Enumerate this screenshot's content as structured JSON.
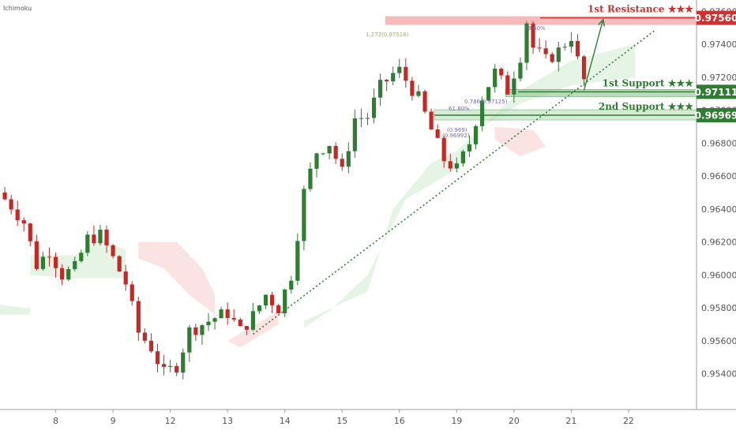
{
  "indicator": "Ichimoku",
  "colors": {
    "up": "#2e7d32",
    "down": "#c62828",
    "resistance": "#d32f2f",
    "support": "#2e7d32",
    "cloud_green": "#e6f4e6",
    "cloud_red": "#fbe3e3",
    "trendline": "#2e7d32",
    "fib_label": "#7b6aa8",
    "fib_ext_label": "#8bc34a"
  },
  "chart_data": {
    "type": "candlestick",
    "symbol_label": "Ichimoku",
    "y_ticks": [
      "0.97600",
      "0.97400",
      "0.97200",
      "0.97000",
      "0.96800",
      "0.96600",
      "0.96400",
      "0.96200",
      "0.96000",
      "0.95800",
      "0.95600",
      "0.95400"
    ],
    "y_tick_values": [
      0.976,
      0.974,
      0.972,
      0.97,
      0.968,
      0.966,
      0.964,
      0.962,
      0.96,
      0.958,
      0.956,
      0.954
    ],
    "ylim": [
      0.9525,
      0.9763
    ],
    "x_ticks": [
      "8",
      "9",
      "12",
      "13",
      "14",
      "15",
      "16",
      "19",
      "20",
      "21",
      "22"
    ],
    "x_tick_index": [
      9,
      18,
      27,
      36,
      45,
      54,
      63,
      72,
      81,
      90,
      99
    ],
    "bar_count": 110,
    "close_path": [
      [
        0,
        0.965
      ],
      [
        2,
        0.9642
      ],
      [
        4,
        0.9632
      ],
      [
        6,
        0.9606
      ],
      [
        8,
        0.9615
      ],
      [
        10,
        0.96
      ],
      [
        12,
        0.9604
      ],
      [
        14,
        0.9622
      ],
      [
        16,
        0.9624
      ],
      [
        18,
        0.961
      ],
      [
        20,
        0.9595
      ],
      [
        22,
        0.9565
      ],
      [
        24,
        0.9556
      ],
      [
        26,
        0.954
      ],
      [
        28,
        0.9545
      ],
      [
        30,
        0.9566
      ],
      [
        32,
        0.957
      ],
      [
        34,
        0.9574
      ],
      [
        36,
        0.9577
      ],
      [
        38,
        0.9566
      ],
      [
        40,
        0.9575
      ],
      [
        42,
        0.9588
      ],
      [
        44,
        0.958
      ],
      [
        46,
        0.96
      ],
      [
        48,
        0.965
      ],
      [
        50,
        0.9675
      ],
      [
        52,
        0.968
      ],
      [
        54,
        0.9662
      ],
      [
        56,
        0.9695
      ],
      [
        58,
        0.9696
      ],
      [
        60,
        0.9714
      ],
      [
        62,
        0.9722
      ],
      [
        63,
        0.9724
      ],
      [
        66,
        0.9707
      ],
      [
        68,
        0.9688
      ],
      [
        70,
        0.967
      ],
      [
        72,
        0.9664
      ],
      [
        74,
        0.968
      ],
      [
        76,
        0.9708
      ],
      [
        78,
        0.9723
      ],
      [
        80,
        0.9712
      ],
      [
        82,
        0.9733
      ],
      [
        83,
        0.9754
      ],
      [
        84,
        0.9738
      ],
      [
        86,
        0.973
      ],
      [
        88,
        0.9736
      ],
      [
        90,
        0.9745
      ],
      [
        91,
        0.973
      ],
      [
        92,
        0.9718
      ]
    ],
    "cloud_green": [
      [
        [
          0,
          0.9582
        ],
        [
          4,
          0.958
        ],
        [
          5,
          0.958
        ],
        [
          5,
          0.9576
        ],
        [
          0,
          0.9576
        ]
      ],
      [
        [
          5,
          0.9612
        ],
        [
          12,
          0.9612
        ],
        [
          16,
          0.9622
        ],
        [
          20,
          0.9615
        ],
        [
          20,
          0.9598
        ],
        [
          12,
          0.9598
        ],
        [
          5,
          0.96
        ]
      ],
      [
        [
          48,
          0.9572
        ],
        [
          58,
          0.959
        ],
        [
          62,
          0.964
        ],
        [
          68,
          0.9668
        ],
        [
          72,
          0.9675
        ],
        [
          76,
          0.969
        ],
        [
          82,
          0.9712
        ],
        [
          90,
          0.973
        ],
        [
          100,
          0.974
        ],
        [
          100,
          0.972
        ],
        [
          90,
          0.9715
        ],
        [
          82,
          0.9704
        ],
        [
          76,
          0.969
        ],
        [
          72,
          0.9664
        ],
        [
          64,
          0.9646
        ],
        [
          58,
          0.96
        ],
        [
          52,
          0.9578
        ],
        [
          48,
          0.9568
        ]
      ]
    ],
    "cloud_red": [
      [
        [
          22,
          0.962
        ],
        [
          28,
          0.962
        ],
        [
          32,
          0.9604
        ],
        [
          34,
          0.9588
        ],
        [
          34,
          0.9576
        ],
        [
          30,
          0.9588
        ],
        [
          26,
          0.9604
        ],
        [
          22,
          0.961
        ]
      ],
      [
        [
          36,
          0.956
        ],
        [
          44,
          0.9578
        ],
        [
          44,
          0.957
        ],
        [
          38,
          0.9556
        ]
      ],
      [
        [
          78,
          0.969
        ],
        [
          84,
          0.9688
        ],
        [
          86,
          0.9678
        ],
        [
          82,
          0.9672
        ],
        [
          78,
          0.9682
        ]
      ]
    ],
    "trendline": [
      [
        40,
        0.9564
      ],
      [
        103,
        0.9748
      ]
    ],
    "projection_arrow": [
      [
        92,
        0.9712
      ],
      [
        95,
        0.9755
      ]
    ],
    "levels": [
      {
        "label": "1st Resistance ★★★",
        "value": "0.97560",
        "price": 0.9756,
        "role": "resistance"
      },
      {
        "label": "1st Support ★★★",
        "value": "0.97111",
        "price": 0.97111,
        "role": "support"
      },
      {
        "label": "2nd Support ★★★",
        "value": "0.96969",
        "price": 0.96969,
        "role": "support"
      }
    ],
    "fib_labels": [
      {
        "text": "1.272(0.97518)",
        "role": "extension"
      },
      {
        "text": "78.60%",
        "role": "retracement"
      },
      {
        "text": "0.786(0.97125)",
        "role": "retracement"
      },
      {
        "text": "61.80%",
        "role": "retracement"
      },
      {
        "text": "(0.969)",
        "role": "retracement"
      },
      {
        "text": "(0.96992)",
        "role": "retracement"
      }
    ]
  }
}
